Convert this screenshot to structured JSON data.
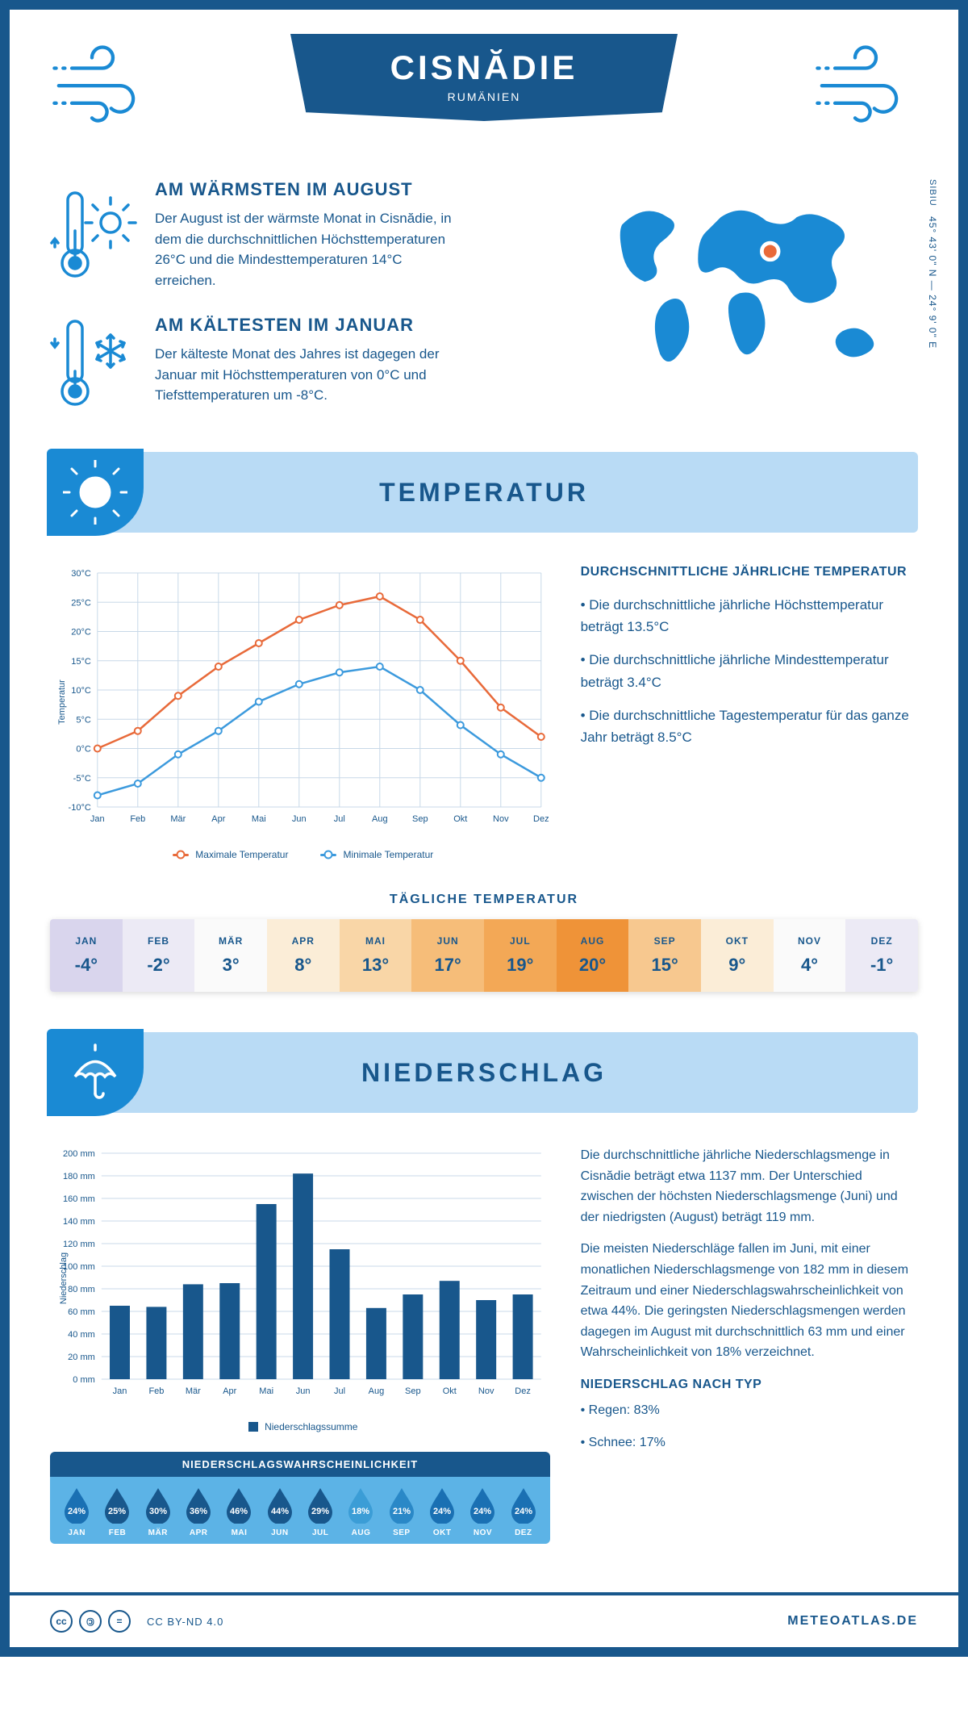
{
  "header": {
    "city": "CISNĂDIE",
    "country": "RUMÄNIEN",
    "coords": "45° 43' 0\" N — 24° 9' 0\" E",
    "county": "SIBIU"
  },
  "colors": {
    "primary": "#18578c",
    "accent": "#1a8ad4",
    "lightblue": "#b9dbf5",
    "grid": "#c8d8e8",
    "max_line": "#e86a3a",
    "min_line": "#3c9add"
  },
  "summary": {
    "warm": {
      "title": "AM WÄRMSTEN IM AUGUST",
      "text": "Der August ist der wärmste Monat in Cisnădie, in dem die durchschnittlichen Höchsttemperaturen 26°C und die Mindesttemperaturen 14°C erreichen."
    },
    "cold": {
      "title": "AM KÄLTESTEN IM JANUAR",
      "text": "Der kälteste Monat des Jahres ist dagegen der Januar mit Höchsttemperaturen von 0°C und Tiefsttemperaturen um -8°C."
    }
  },
  "temp": {
    "section_title": "TEMPERATUR",
    "months": [
      "Jan",
      "Feb",
      "Mär",
      "Apr",
      "Mai",
      "Jun",
      "Jul",
      "Aug",
      "Sep",
      "Okt",
      "Nov",
      "Dez"
    ],
    "y_ticks": [
      "30°C",
      "25°C",
      "20°C",
      "15°C",
      "10°C",
      "5°C",
      "0°C",
      "-5°C",
      "-10°C"
    ],
    "y_min": -10,
    "y_max": 30,
    "y_label": "Temperatur",
    "max_series": [
      0,
      3,
      9,
      14,
      18,
      22,
      24.5,
      26,
      22,
      15,
      7,
      2
    ],
    "min_series": [
      -8,
      -6,
      -1,
      3,
      8,
      11,
      13,
      14,
      10,
      4,
      -1,
      -5
    ],
    "legend_max": "Maximale Temperatur",
    "legend_min": "Minimale Temperatur",
    "info_title": "DURCHSCHNITTLICHE JÄHRLICHE TEMPERATUR",
    "info_p1": "• Die durchschnittliche jährliche Höchsttemperatur beträgt 13.5°C",
    "info_p2": "• Die durchschnittliche jährliche Mindesttemperatur beträgt 3.4°C",
    "info_p3": "• Die durchschnittliche Tagestemperatur für das ganze Jahr beträgt 8.5°C",
    "daily_title": "TÄGLICHE TEMPERATUR",
    "daily": [
      {
        "m": "JAN",
        "v": "-4°",
        "bg": "#d9d5ed"
      },
      {
        "m": "FEB",
        "v": "-2°",
        "bg": "#eceaf5"
      },
      {
        "m": "MÄR",
        "v": "3°",
        "bg": "#fafafa"
      },
      {
        "m": "APR",
        "v": "8°",
        "bg": "#fbedd7"
      },
      {
        "m": "MAI",
        "v": "13°",
        "bg": "#f9d6a7"
      },
      {
        "m": "JUN",
        "v": "17°",
        "bg": "#f6bd79"
      },
      {
        "m": "JUL",
        "v": "19°",
        "bg": "#f3a856"
      },
      {
        "m": "AUG",
        "v": "20°",
        "bg": "#ef9338"
      },
      {
        "m": "SEP",
        "v": "15°",
        "bg": "#f7c88f"
      },
      {
        "m": "OKT",
        "v": "9°",
        "bg": "#fbedd7"
      },
      {
        "m": "NOV",
        "v": "4°",
        "bg": "#fafafa"
      },
      {
        "m": "DEZ",
        "v": "-1°",
        "bg": "#eceaf5"
      }
    ]
  },
  "precip": {
    "section_title": "NIEDERSCHLAG",
    "months": [
      "Jan",
      "Feb",
      "Mär",
      "Apr",
      "Mai",
      "Jun",
      "Jul",
      "Aug",
      "Sep",
      "Okt",
      "Nov",
      "Dez"
    ],
    "values": [
      65,
      64,
      84,
      85,
      155,
      182,
      115,
      63,
      75,
      87,
      70,
      75
    ],
    "y_max": 200,
    "y_step": 20,
    "y_label": "Niederschlag",
    "legend": "Niederschlagssumme",
    "bar_color": "#18578c",
    "prob_title": "NIEDERSCHLAGSWAHRSCHEINLICHKEIT",
    "prob": [
      {
        "m": "JAN",
        "v": "24%",
        "bg": "#1a70b3"
      },
      {
        "m": "FEB",
        "v": "25%",
        "bg": "#18578c"
      },
      {
        "m": "MÄR",
        "v": "30%",
        "bg": "#18578c"
      },
      {
        "m": "APR",
        "v": "36%",
        "bg": "#18578c"
      },
      {
        "m": "MAI",
        "v": "46%",
        "bg": "#18578c"
      },
      {
        "m": "JUN",
        "v": "44%",
        "bg": "#18578c"
      },
      {
        "m": "JUL",
        "v": "29%",
        "bg": "#18578c"
      },
      {
        "m": "AUG",
        "v": "18%",
        "bg": "#3b9dd6"
      },
      {
        "m": "SEP",
        "v": "21%",
        "bg": "#2a88c7"
      },
      {
        "m": "OKT",
        "v": "24%",
        "bg": "#1a70b3"
      },
      {
        "m": "NOV",
        "v": "24%",
        "bg": "#1a70b3"
      },
      {
        "m": "DEZ",
        "v": "24%",
        "bg": "#1a70b3"
      }
    ],
    "info_p1": "Die durchschnittliche jährliche Niederschlagsmenge in Cisnădie beträgt etwa 1137 mm. Der Unterschied zwischen der höchsten Niederschlagsmenge (Juni) und der niedrigsten (August) beträgt 119 mm.",
    "info_p2": "Die meisten Niederschläge fallen im Juni, mit einer monatlichen Niederschlagsmenge von 182 mm in diesem Zeitraum und einer Niederschlagswahrscheinlichkeit von etwa 44%. Die geringsten Niederschlagsmengen werden dagegen im August mit durchschnittlich 63 mm und einer Wahrscheinlichkeit von 18% verzeichnet.",
    "type_title": "NIEDERSCHLAG NACH TYP",
    "type_p1": "• Regen: 83%",
    "type_p2": "• Schnee: 17%"
  },
  "footer": {
    "license": "CC BY-ND 4.0",
    "site": "METEOATLAS.DE"
  }
}
